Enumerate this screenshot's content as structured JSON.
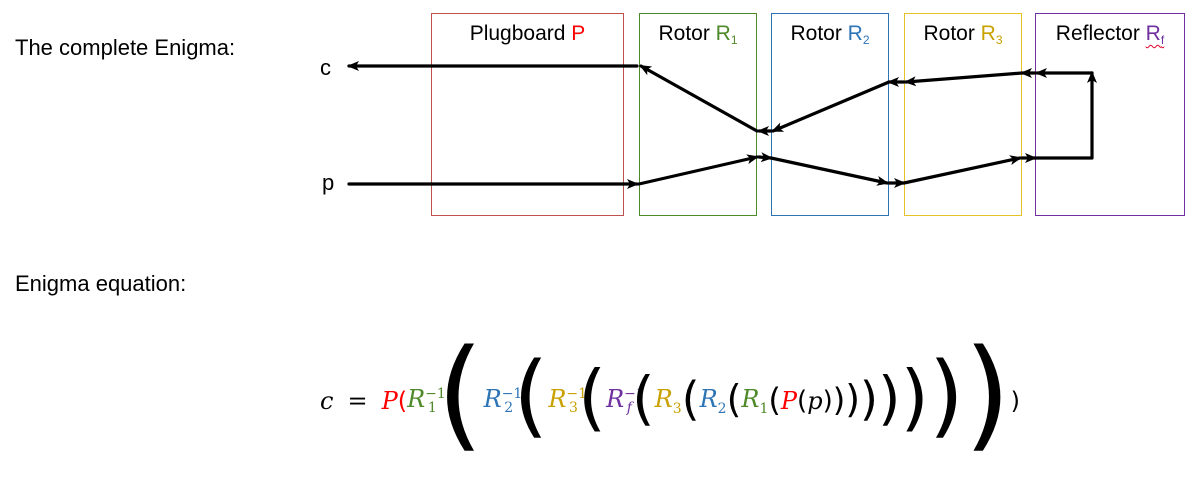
{
  "heading": "The complete Enigma:",
  "label_c": "c",
  "label_p": "p",
  "components": [
    {
      "prefix": "Plugboard ",
      "symbol": "P",
      "sub": "",
      "color": "#ff0000",
      "border": "#c0504d"
    },
    {
      "prefix": "Rotor ",
      "symbol": "R",
      "sub": "1",
      "color": "#4f8a2a",
      "border": "#4f8a2a"
    },
    {
      "prefix": "Rotor ",
      "symbol": "R",
      "sub": "2",
      "color": "#2e75b6",
      "border": "#2e75b6"
    },
    {
      "prefix": "Rotor ",
      "symbol": "R",
      "sub": "3",
      "color": "#c9a100",
      "border": "#e6c229"
    },
    {
      "prefix": "Reflector ",
      "symbol": "R",
      "sub": "f",
      "color": "#7030a0",
      "border": "#7030a0"
    }
  ],
  "equation_heading": "Enigma equation:",
  "equation": {
    "lhs": "c",
    "equals": "=",
    "P": "P",
    "R": "R",
    "inv": "−1",
    "sub1": "1",
    "sub2": "2",
    "sub3": "3",
    "subf": "f",
    "p": "p",
    "colors": {
      "P": "#ff0000",
      "R1": "#4f8a2a",
      "R2": "#2e75b6",
      "R3": "#c9a100",
      "Rf": "#7030a0"
    }
  }
}
